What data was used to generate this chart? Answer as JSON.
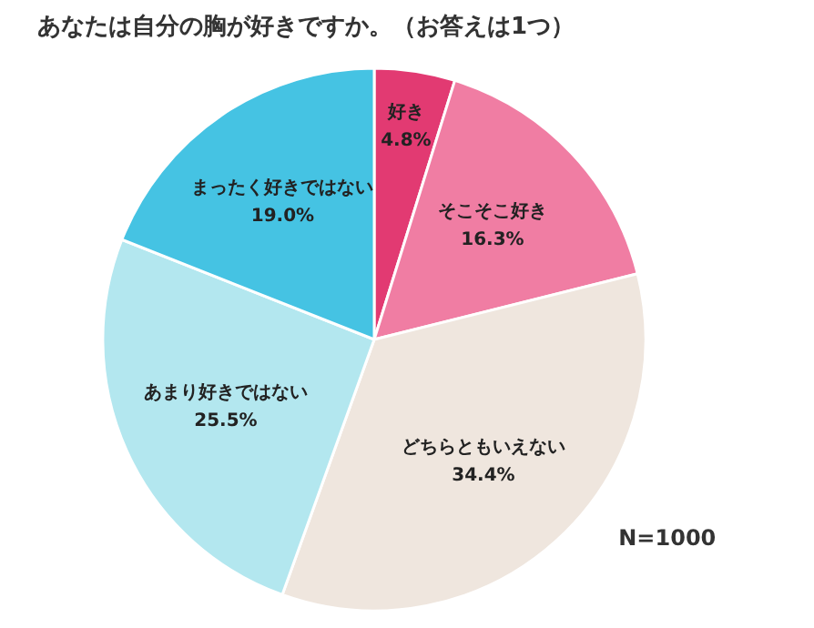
{
  "chart_data": {
    "type": "pie",
    "title": "あなたは自分の胸が好きですか。（お答えは1つ）",
    "categories": [
      "好き",
      "そこそこ好き",
      "どちらともいえない",
      "あまり好きではない",
      "まったく好きではない"
    ],
    "values": [
      4.8,
      16.3,
      34.4,
      25.5,
      19.0
    ],
    "colors": [
      "#e23a72",
      "#f07da3",
      "#efe6de",
      "#b3e7ef",
      "#45c3e3"
    ],
    "value_labels": [
      "4.8%",
      "16.3%",
      "34.4%",
      "25.5%",
      "19.0%"
    ],
    "annotations": [
      "N=1000"
    ]
  }
}
